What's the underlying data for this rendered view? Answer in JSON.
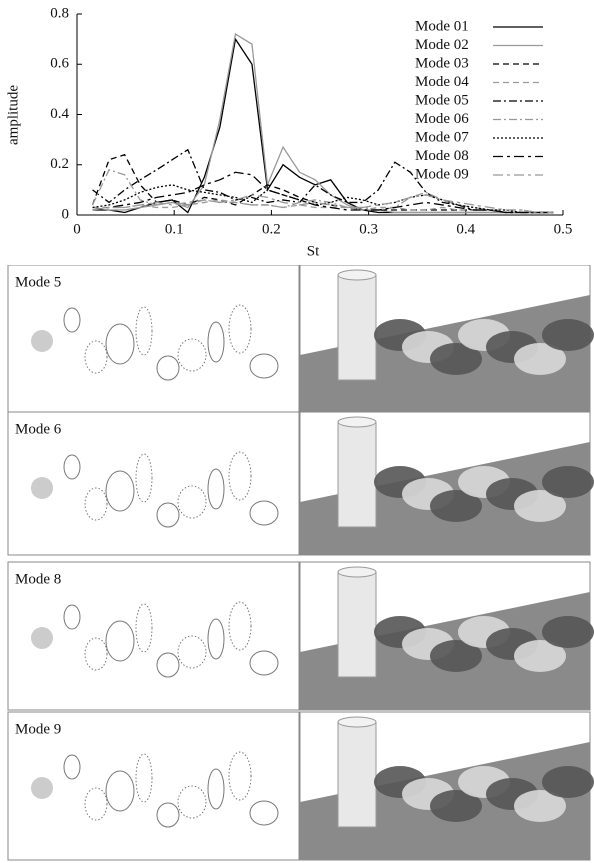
{
  "chart_data": {
    "type": "line",
    "xlabel": "St",
    "ylabel": "amplitude",
    "xlim": [
      0,
      0.5
    ],
    "ylim": [
      0,
      0.8
    ],
    "xticks": [
      0,
      0.1,
      0.2,
      0.3,
      0.4,
      0.5
    ],
    "yticks": [
      0,
      0.2,
      0.4,
      0.6,
      0.8
    ],
    "legend": "upper right",
    "x": [
      0.016,
      0.033,
      0.049,
      0.065,
      0.082,
      0.098,
      0.114,
      0.131,
      0.147,
      0.163,
      0.18,
      0.196,
      0.212,
      0.229,
      0.245,
      0.261,
      0.278,
      0.294,
      0.31,
      0.327,
      0.343,
      0.359,
      0.376,
      0.392,
      0.408,
      0.425,
      0.441,
      0.457,
      0.474,
      0.49
    ],
    "series": [
      {
        "name": "Mode 01",
        "color": "#000000",
        "dash": "none",
        "values": [
          0.02,
          0.02,
          0.01,
          0.03,
          0.05,
          0.06,
          0.01,
          0.15,
          0.35,
          0.7,
          0.6,
          0.1,
          0.2,
          0.15,
          0.12,
          0.14,
          0.05,
          0.02,
          0.01,
          0.01,
          0.01,
          0.01,
          0.01,
          0.01,
          0.01,
          0.01,
          0.01,
          0.01,
          0.01,
          0.01
        ]
      },
      {
        "name": "Mode 02",
        "color": "#999999",
        "dash": "none",
        "values": [
          0.03,
          0.02,
          0.02,
          0.03,
          0.04,
          0.05,
          0.03,
          0.12,
          0.38,
          0.72,
          0.68,
          0.12,
          0.27,
          0.17,
          0.14,
          0.08,
          0.04,
          0.02,
          0.02,
          0.01,
          0.01,
          0.01,
          0.01,
          0.01,
          0.01,
          0.01,
          0.01,
          0.01,
          0.01,
          0.01
        ]
      },
      {
        "name": "Mode 03",
        "color": "#000000",
        "dash": "6,4",
        "values": [
          0.04,
          0.22,
          0.24,
          0.12,
          0.05,
          0.06,
          0.04,
          0.07,
          0.06,
          0.04,
          0.08,
          0.12,
          0.1,
          0.07,
          0.05,
          0.04,
          0.03,
          0.02,
          0.02,
          0.02,
          0.02,
          0.02,
          0.02,
          0.02,
          0.02,
          0.02,
          0.01,
          0.01,
          0.01,
          0.01
        ]
      },
      {
        "name": "Mode 04",
        "color": "#999999",
        "dash": "6,4",
        "values": [
          0.03,
          0.03,
          0.03,
          0.04,
          0.03,
          0.03,
          0.04,
          0.05,
          0.06,
          0.05,
          0.04,
          0.04,
          0.03,
          0.04,
          0.03,
          0.03,
          0.03,
          0.02,
          0.03,
          0.03,
          0.02,
          0.02,
          0.03,
          0.02,
          0.02,
          0.02,
          0.01,
          0.01,
          0.01,
          0.01
        ]
      },
      {
        "name": "Mode 05",
        "color": "#000000",
        "dash": "8,3,2,3",
        "values": [
          0.1,
          0.05,
          0.1,
          0.14,
          0.18,
          0.22,
          0.26,
          0.1,
          0.09,
          0.06,
          0.07,
          0.05,
          0.06,
          0.05,
          0.12,
          0.08,
          0.05,
          0.05,
          0.1,
          0.21,
          0.17,
          0.09,
          0.05,
          0.04,
          0.02,
          0.02,
          0.01,
          0.01,
          0.01,
          0.01
        ]
      },
      {
        "name": "Mode 06",
        "color": "#999999",
        "dash": "8,3,2,3",
        "values": [
          0.04,
          0.18,
          0.16,
          0.06,
          0.04,
          0.05,
          0.04,
          0.06,
          0.05,
          0.05,
          0.04,
          0.04,
          0.03,
          0.05,
          0.06,
          0.05,
          0.03,
          0.03,
          0.02,
          0.03,
          0.07,
          0.09,
          0.06,
          0.04,
          0.03,
          0.02,
          0.02,
          0.02,
          0.01,
          0.01
        ]
      },
      {
        "name": "Mode 07",
        "color": "#000000",
        "dash": "2,2",
        "values": [
          0.03,
          0.04,
          0.06,
          0.09,
          0.11,
          0.12,
          0.1,
          0.09,
          0.08,
          0.07,
          0.05,
          0.1,
          0.08,
          0.06,
          0.04,
          0.05,
          0.07,
          0.06,
          0.04,
          0.05,
          0.07,
          0.08,
          0.06,
          0.04,
          0.03,
          0.02,
          0.02,
          0.01,
          0.01,
          0.01
        ]
      },
      {
        "name": "Mode 08",
        "color": "#000000",
        "dash": "10,4,3,4",
        "values": [
          0.02,
          0.03,
          0.04,
          0.05,
          0.07,
          0.08,
          0.09,
          0.12,
          0.14,
          0.17,
          0.16,
          0.1,
          0.08,
          0.06,
          0.04,
          0.03,
          0.02,
          0.02,
          0.02,
          0.03,
          0.04,
          0.05,
          0.04,
          0.03,
          0.02,
          0.02,
          0.01,
          0.01,
          0.01,
          0.01
        ]
      },
      {
        "name": "Mode 09",
        "color": "#999999",
        "dash": "10,4,3,4",
        "values": [
          0.02,
          0.03,
          0.03,
          0.04,
          0.05,
          0.04,
          0.05,
          0.06,
          0.05,
          0.06,
          0.08,
          0.07,
          0.05,
          0.04,
          0.05,
          0.04,
          0.03,
          0.03,
          0.04,
          0.05,
          0.07,
          0.08,
          0.06,
          0.05,
          0.04,
          0.03,
          0.02,
          0.02,
          0.01,
          0.01
        ]
      }
    ]
  },
  "panels": [
    {
      "label": "Mode 5"
    },
    {
      "label": "Mode 6"
    },
    {
      "label": "Mode 8"
    },
    {
      "label": "Mode 9"
    }
  ]
}
